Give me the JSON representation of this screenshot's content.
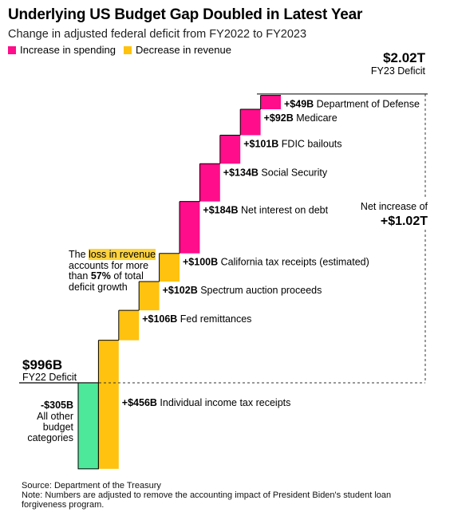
{
  "chart_data": {
    "type": "waterfall",
    "title": "Underlying US Budget Gap Doubled in Latest Year",
    "subtitle": "Change in adjusted federal deficit from FY2022 to FY2023",
    "legend": [
      {
        "name": "Increase in spending",
        "color": "#ff0d8a"
      },
      {
        "name": "Decrease in revenue",
        "color": "#ffc20e"
      }
    ],
    "start": {
      "value": "$996B",
      "label": "FY22 Deficit",
      "amount": 996
    },
    "end": {
      "value": "$2.02T",
      "label": "FY23 Deficit",
      "amount": 2020
    },
    "net": {
      "label": "Net increase of",
      "value": "+$1.02T"
    },
    "steps": [
      {
        "label": "-$305B",
        "description": "All other budget categories",
        "value": -305,
        "kind": "other",
        "color": "#4ee89a"
      },
      {
        "label": "+$456B",
        "description": "Individual income tax receipts",
        "value": 456,
        "kind": "revenue",
        "color": "#ffc20e"
      },
      {
        "label": "+$106B",
        "description": "Fed remittances",
        "value": 106,
        "kind": "revenue",
        "color": "#ffc20e"
      },
      {
        "label": "+$102B",
        "description": "Spectrum auction proceeds",
        "value": 102,
        "kind": "revenue",
        "color": "#ffc20e"
      },
      {
        "label": "+$100B",
        "description": "California tax receipts (estimated)",
        "value": 100,
        "kind": "revenue",
        "color": "#ffc20e"
      },
      {
        "label": "+$184B",
        "description": "Net interest on debt",
        "value": 184,
        "kind": "spending",
        "color": "#ff0d8a"
      },
      {
        "label": "+$134B",
        "description": "Social Security",
        "value": 134,
        "kind": "spending",
        "color": "#ff0d8a"
      },
      {
        "label": "+$101B",
        "description": "FDIC bailouts",
        "value": 101,
        "kind": "spending",
        "color": "#ff0d8a"
      },
      {
        "label": "+$92B",
        "description": "Medicare",
        "value": 92,
        "kind": "spending",
        "color": "#ff0d8a"
      },
      {
        "label": "+$49B",
        "description": "Department of Defense",
        "value": 49,
        "kind": "spending",
        "color": "#ff0d8a"
      }
    ],
    "annotation": {
      "pre": "The ",
      "highlight": "loss in revenue",
      "mid": " accounts for more than ",
      "pct": "57%",
      "post": " of total deficit growth"
    }
  },
  "footer": {
    "source": "Source: Department of the Treasury",
    "note": "Note: Numbers are adjusted to remove the accounting impact of President Biden's student loan forgiveness program."
  }
}
